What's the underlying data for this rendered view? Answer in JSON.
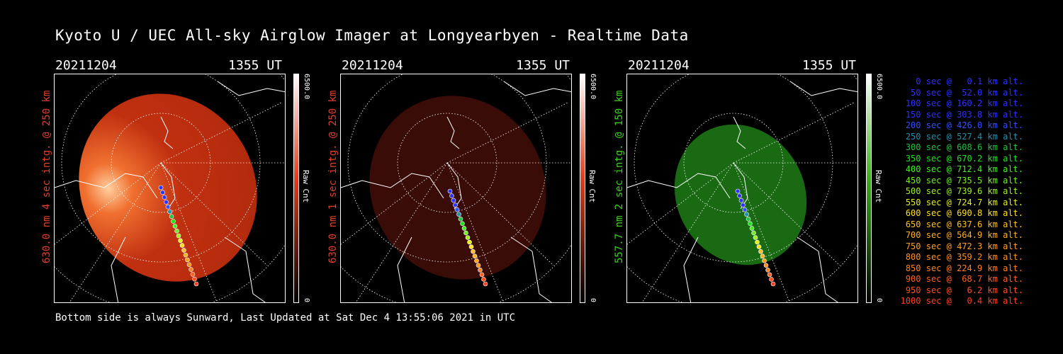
{
  "title": "Kyoto U / UEC All-sky Airglow Imager at Longyearbyen - Realtime Data",
  "footer": "Bottom side is always Sunward, Last Updated at Sat Dec  4 13:55:06 2021 in UTC",
  "panels": [
    {
      "date": "20211204",
      "time": "1355 UT",
      "side_label": "630.0 nm 4 sec intg. @ 250 km",
      "side_color": "#e0402a",
      "cbar_max": "6500.0",
      "cbar_min": "0",
      "cbar_unit": "Raw Cnt",
      "cbar_top": "#ffffff",
      "cbar_mid": "#e04020",
      "cbar_bottom": "#000000",
      "image_color": "red-bright"
    },
    {
      "date": "20211204",
      "time": "1355 UT",
      "side_label": "630.0 nm 1 sec intg. @ 250 km",
      "side_color": "#e0402a",
      "cbar_max": "6500.0",
      "cbar_min": "0",
      "cbar_unit": "Raw Cnt",
      "cbar_top": "#ffffff",
      "cbar_mid": "#e04020",
      "cbar_bottom": "#000000",
      "image_color": "red-dim"
    },
    {
      "date": "20211204",
      "time": "1355 UT",
      "side_label": "557.7 nm 2 sec intg. @ 150 km",
      "side_color": "#40d020",
      "cbar_max": "6500.0",
      "cbar_min": "0",
      "cbar_unit": "Raw Cnt",
      "cbar_top": "#ffffff",
      "cbar_mid": "#40b020",
      "cbar_bottom": "#000000",
      "image_color": "green"
    }
  ],
  "legend": [
    {
      "text": "0 sec @   0.1 km alt.",
      "color": "#3030ff"
    },
    {
      "text": "50 sec @  52.0 km alt.",
      "color": "#3030ff"
    },
    {
      "text": "100 sec @ 160.2 km alt.",
      "color": "#3030ff"
    },
    {
      "text": "150 sec @ 303.8 km alt.",
      "color": "#3030ff"
    },
    {
      "text": "200 sec @ 426.0 km alt.",
      "color": "#3050ff"
    },
    {
      "text": "250 sec @ 527.4 km alt.",
      "color": "#2090b0"
    },
    {
      "text": "300 sec @ 608.6 km alt.",
      "color": "#20c040"
    },
    {
      "text": "350 sec @ 670.2 km alt.",
      "color": "#20e020"
    },
    {
      "text": "400 sec @ 712.4 km alt.",
      "color": "#40f020"
    },
    {
      "text": "450 sec @ 735.5 km alt.",
      "color": "#70f020"
    },
    {
      "text": "500 sec @ 739.6 km alt.",
      "color": "#a0f020"
    },
    {
      "text": "550 sec @ 724.7 km alt.",
      "color": "#e0f020"
    },
    {
      "text": "600 sec @ 690.8 km alt.",
      "color": "#ffe020"
    },
    {
      "text": "650 sec @ 637.6 km alt.",
      "color": "#ffc020"
    },
    {
      "text": "700 sec @ 564.9 km alt.",
      "color": "#ffb020"
    },
    {
      "text": "750 sec @ 472.3 km alt.",
      "color": "#ffa020"
    },
    {
      "text": "800 sec @ 359.2 km alt.",
      "color": "#ff9020"
    },
    {
      "text": "850 sec @ 224.9 km alt.",
      "color": "#ff8020"
    },
    {
      "text": "900 sec @  68.7 km alt.",
      "color": "#ff6020"
    },
    {
      "text": "950 sec @   6.2 km alt.",
      "color": "#ff5020"
    },
    {
      "text": "1000 sec @   0.4 km alt.",
      "color": "#ff4020"
    }
  ]
}
